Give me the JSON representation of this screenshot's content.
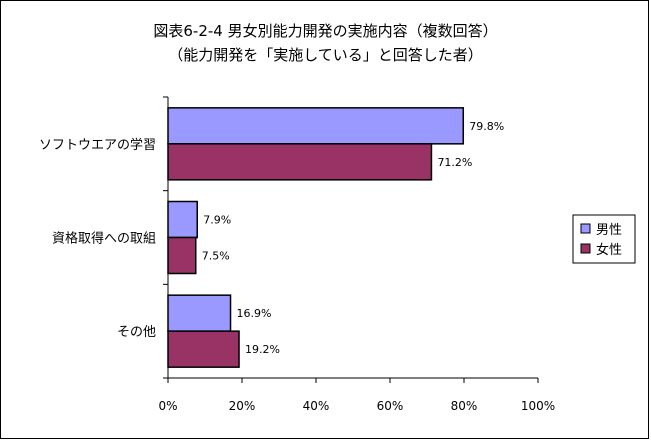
{
  "chart_data": {
    "type": "bar",
    "orientation": "horizontal",
    "title": "図表6-2-4 男女別能力開発の実施内容（複数回答）",
    "subtitle": "（能力開発を「実施している」と回答した者）",
    "categories": [
      "ソフトウエアの学習",
      "資格取得への取組",
      "その他"
    ],
    "series": [
      {
        "name": "男性",
        "values": [
          79.8,
          7.9,
          16.9
        ],
        "color": "#9999ff"
      },
      {
        "name": "女性",
        "values": [
          71.2,
          7.5,
          19.2
        ],
        "color": "#993366"
      }
    ],
    "value_labels": [
      [
        "79.8%",
        "7.9%",
        "16.9%"
      ],
      [
        "71.2%",
        "7.5%",
        "19.2%"
      ]
    ],
    "xlim": [
      0,
      100
    ],
    "x_ticks": [
      "0%",
      "20%",
      "40%",
      "60%",
      "80%",
      "100%"
    ],
    "grid": false,
    "legend_position": "right"
  }
}
